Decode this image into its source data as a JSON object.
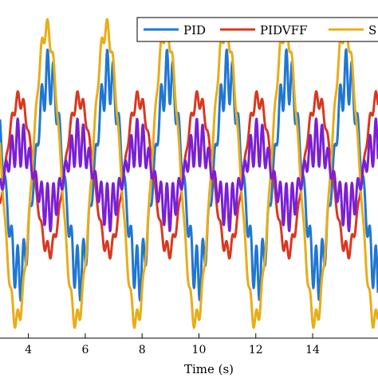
{
  "chart_data": {
    "type": "line",
    "xlabel": "Time (s)",
    "ylabel": "",
    "title": "",
    "xlim": [
      3.0,
      16.3
    ],
    "ylim": [
      -1.4,
      1.5
    ],
    "xticks": [
      4,
      6,
      8,
      10,
      12,
      14
    ],
    "xtick_labels": [
      "4",
      "6",
      "8",
      "10",
      "12",
      "14"
    ],
    "grid": false,
    "legend_position": "top-right",
    "period_s": 2.1,
    "series": [
      {
        "name": "PID",
        "color": "#1f77d4",
        "amplitude": 0.85,
        "phase": 0.0,
        "ripple": 0.16
      },
      {
        "name": "PIDVFF",
        "color": "#d9381e",
        "amplitude": 0.65,
        "phase": 3.1416,
        "ripple": 0.05
      },
      {
        "name": "S",
        "color": "#e8ad17",
        "amplitude": 1.25,
        "phase": 0.25,
        "ripple": 0.06
      },
      {
        "name": "",
        "color": "#7a1fd6",
        "amplitude": 0.28,
        "phase": 3.1416,
        "ripple": 0.14
      }
    ]
  }
}
